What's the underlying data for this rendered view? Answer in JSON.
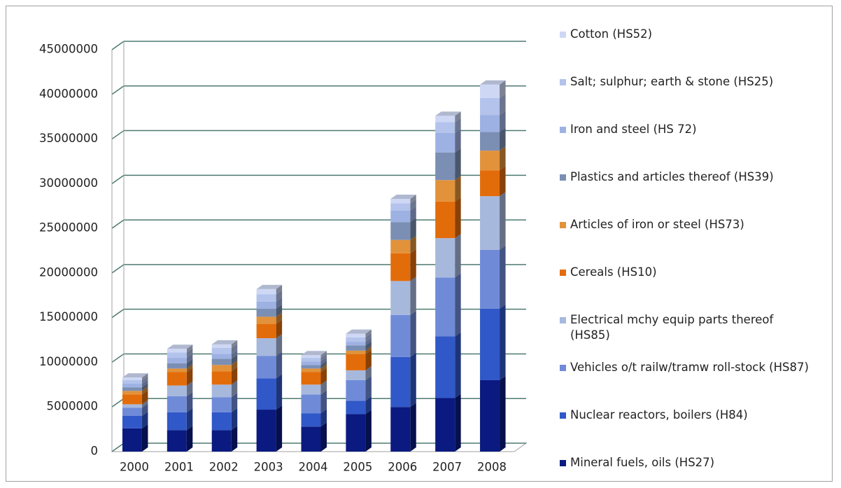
{
  "chart_data": {
    "type": "bar3d_stacked",
    "categories": [
      "2000",
      "2001",
      "2002",
      "2003",
      "2004",
      "2005",
      "2006",
      "2007",
      "2008"
    ],
    "series": [
      {
        "name": "Mineral fuels, oils (HS27)",
        "color": "#0a1a80",
        "values": [
          2600000,
          2400000,
          2400000,
          4700000,
          2800000,
          4200000,
          5000000,
          6000000,
          8000000
        ]
      },
      {
        "name": "Nuclear reactors, boilers (H84)",
        "color": "#3158c8",
        "values": [
          1400000,
          2000000,
          2000000,
          3500000,
          1500000,
          1500000,
          5600000,
          6900000,
          8000000
        ]
      },
      {
        "name": "Vehicles o/t railw/tramw roll-stock (HS87)",
        "color": "#6f8bd8",
        "values": [
          900000,
          1800000,
          1700000,
          2500000,
          2100000,
          2300000,
          4700000,
          6600000,
          6600000
        ]
      },
      {
        "name": "Electrical mchy equip parts thereof (HS85)",
        "color": "#a7b8dd",
        "values": [
          400000,
          1200000,
          1400000,
          2000000,
          1100000,
          1100000,
          3800000,
          4400000,
          6000000
        ]
      },
      {
        "name": "Cereals (HS10)",
        "color": "#e36c0a",
        "values": [
          1100000,
          1500000,
          1500000,
          1600000,
          1400000,
          1800000,
          3100000,
          4100000,
          2900000
        ]
      },
      {
        "name": "Articles of iron or steel (HS73)",
        "color": "#e2923a",
        "values": [
          400000,
          400000,
          700000,
          800000,
          400000,
          400000,
          1500000,
          2400000,
          2200000
        ]
      },
      {
        "name": "Plastics and articles thereof (HS39)",
        "color": "#7b8fb4",
        "values": [
          400000,
          600000,
          700000,
          900000,
          400000,
          600000,
          2000000,
          3100000,
          2100000
        ]
      },
      {
        "name": "Iron and steel (HS 72)",
        "color": "#9db1e3",
        "values": [
          400000,
          600000,
          500000,
          800000,
          400000,
          400000,
          1300000,
          2200000,
          1900000
        ]
      },
      {
        "name": "Salt; sulphur; earth & stone (HS25)",
        "color": "#b3c3ec",
        "values": [
          400000,
          600000,
          700000,
          800000,
          400000,
          500000,
          800000,
          1200000,
          1900000
        ]
      },
      {
        "name": "Cotton (HS52)",
        "color": "#ced8f4",
        "values": [
          300000,
          400000,
          400000,
          600000,
          300000,
          400000,
          500000,
          700000,
          1500000
        ]
      }
    ],
    "ylim": [
      0,
      45000000
    ],
    "yticks": [
      0,
      5000000,
      10000000,
      15000000,
      20000000,
      25000000,
      30000000,
      35000000,
      40000000,
      45000000
    ],
    "grid": true,
    "legend": "right"
  }
}
